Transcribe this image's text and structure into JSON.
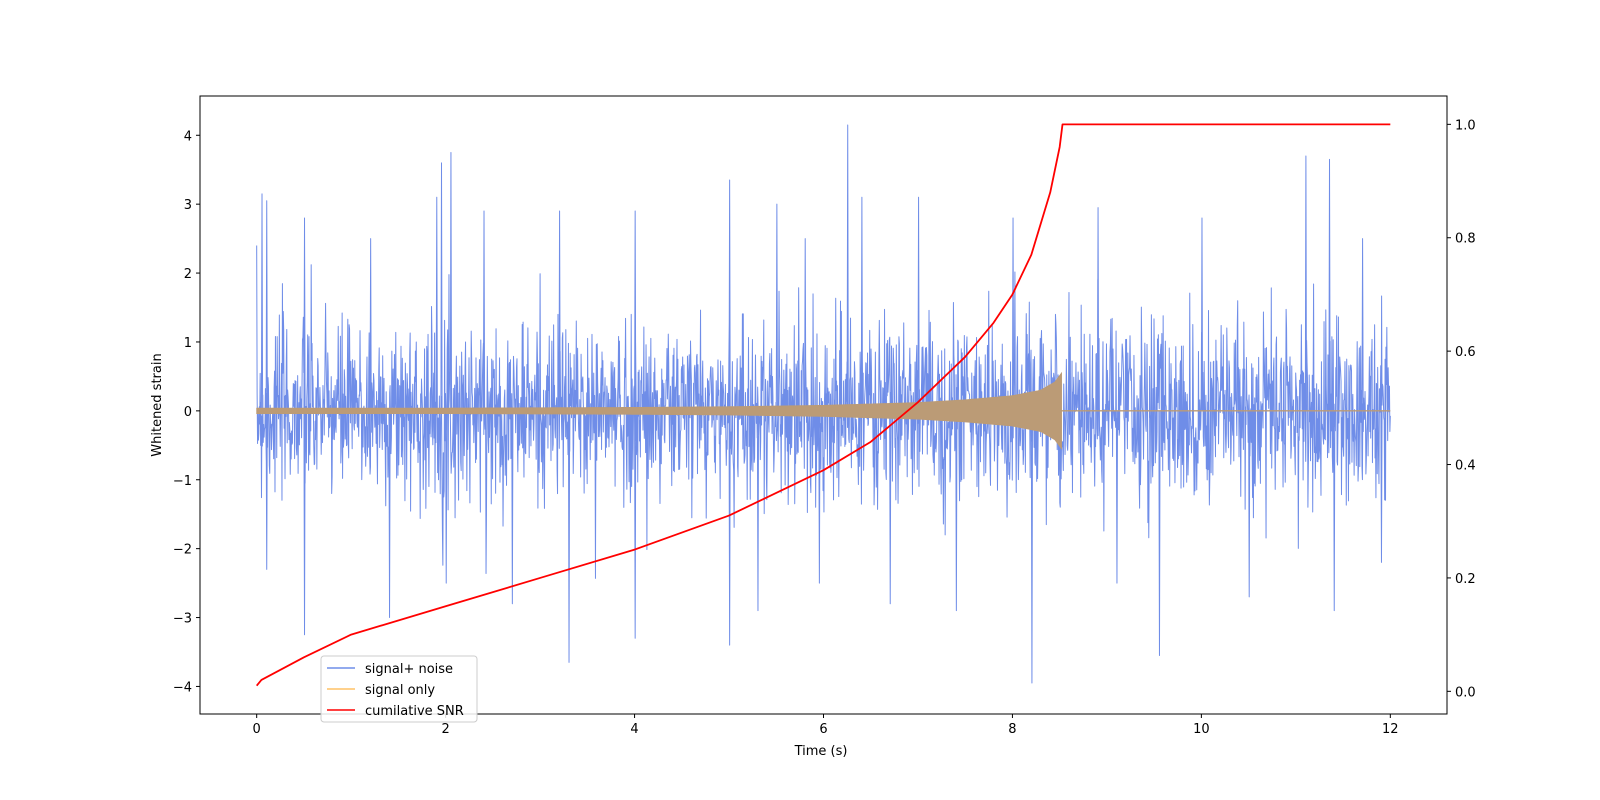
{
  "chart_data": {
    "type": "line",
    "title": "",
    "xlabel": "Time (s)",
    "ylabel": "Whitened strain",
    "y2label": "",
    "xlim": [
      -0.6,
      12.6
    ],
    "ylim": [
      -4.4,
      4.57
    ],
    "y2lim": [
      -0.04,
      1.05
    ],
    "x_ticks": [
      0,
      2,
      4,
      6,
      8,
      10,
      12
    ],
    "y_ticks": [
      -4,
      -3,
      -2,
      -1,
      0,
      1,
      2,
      3,
      4
    ],
    "y2_ticks": [
      0.0,
      0.2,
      0.4,
      0.6,
      0.8,
      1.0
    ],
    "x_tick_labels": [
      "0",
      "2",
      "4",
      "6",
      "8",
      "10",
      "12"
    ],
    "y_tick_labels": [
      "−4",
      "−3",
      "−2",
      "−1",
      "0",
      "1",
      "2",
      "3",
      "4"
    ],
    "y2_tick_labels": [
      "0.0",
      "0.2",
      "0.4",
      "0.6",
      "0.8",
      "1.0"
    ],
    "grid": false,
    "legend_position": "lower-left",
    "colors": {
      "signal_noise": "#6f8de8",
      "signal_only": "#ffc266",
      "cumulative_snr": "#ff0000",
      "overlap": "#bb9b76"
    },
    "series": [
      {
        "name": "signal+ noise",
        "axis": "left",
        "kind": "noise-band",
        "x_range": [
          0,
          12
        ],
        "typical_envelope": [
          -1.5,
          1.5
        ],
        "peaks_positive": [
          [
            0.05,
            3.15
          ],
          [
            0.1,
            3.05
          ],
          [
            0.5,
            2.8
          ],
          [
            1.2,
            2.5
          ],
          [
            1.9,
            3.1
          ],
          [
            1.95,
            3.6
          ],
          [
            2.05,
            3.75
          ],
          [
            2.4,
            2.9
          ],
          [
            3.2,
            2.9
          ],
          [
            4.0,
            2.9
          ],
          [
            5.0,
            3.35
          ],
          [
            5.5,
            3.0
          ],
          [
            5.8,
            2.5
          ],
          [
            6.25,
            4.15
          ],
          [
            6.4,
            3.1
          ],
          [
            7.0,
            3.1
          ],
          [
            8.0,
            2.8
          ],
          [
            8.9,
            2.95
          ],
          [
            10.0,
            2.8
          ],
          [
            11.1,
            3.7
          ],
          [
            11.35,
            3.65
          ],
          [
            11.7,
            2.5
          ]
        ],
        "peaks_negative": [
          [
            0.1,
            -2.3
          ],
          [
            0.5,
            -3.25
          ],
          [
            1.4,
            -3.0
          ],
          [
            2.0,
            -2.5
          ],
          [
            2.7,
            -2.8
          ],
          [
            3.3,
            -3.65
          ],
          [
            4.0,
            -3.3
          ],
          [
            5.0,
            -3.4
          ],
          [
            5.3,
            -2.9
          ],
          [
            5.95,
            -2.5
          ],
          [
            6.7,
            -2.8
          ],
          [
            7.4,
            -2.9
          ],
          [
            8.2,
            -3.95
          ],
          [
            9.1,
            -2.5
          ],
          [
            9.55,
            -3.55
          ],
          [
            10.5,
            -2.7
          ],
          [
            11.4,
            -2.9
          ],
          [
            11.9,
            -2.2
          ]
        ]
      },
      {
        "name": "signal only",
        "axis": "left",
        "kind": "chirp",
        "envelope": [
          [
            0,
            0.04
          ],
          [
            2,
            0.04
          ],
          [
            4,
            0.05
          ],
          [
            5,
            0.06
          ],
          [
            6,
            0.08
          ],
          [
            7,
            0.12
          ],
          [
            7.5,
            0.16
          ],
          [
            8,
            0.22
          ],
          [
            8.3,
            0.3
          ],
          [
            8.45,
            0.42
          ],
          [
            8.52,
            0.55
          ],
          [
            8.53,
            0.0
          ],
          [
            12,
            0.0
          ]
        ],
        "merger_time": 8.52
      },
      {
        "name": "cumilative SNR",
        "axis": "right",
        "kind": "line",
        "x": [
          0,
          0.05,
          0.5,
          1,
          2,
          3,
          4,
          5,
          6,
          6.5,
          7,
          7.5,
          7.8,
          8.0,
          8.2,
          8.4,
          8.5,
          8.53,
          12
        ],
        "values": [
          0.01,
          0.02,
          0.06,
          0.1,
          0.15,
          0.2,
          0.25,
          0.31,
          0.39,
          0.44,
          0.51,
          0.59,
          0.65,
          0.7,
          0.77,
          0.88,
          0.96,
          1.0,
          1.0
        ]
      }
    ]
  }
}
